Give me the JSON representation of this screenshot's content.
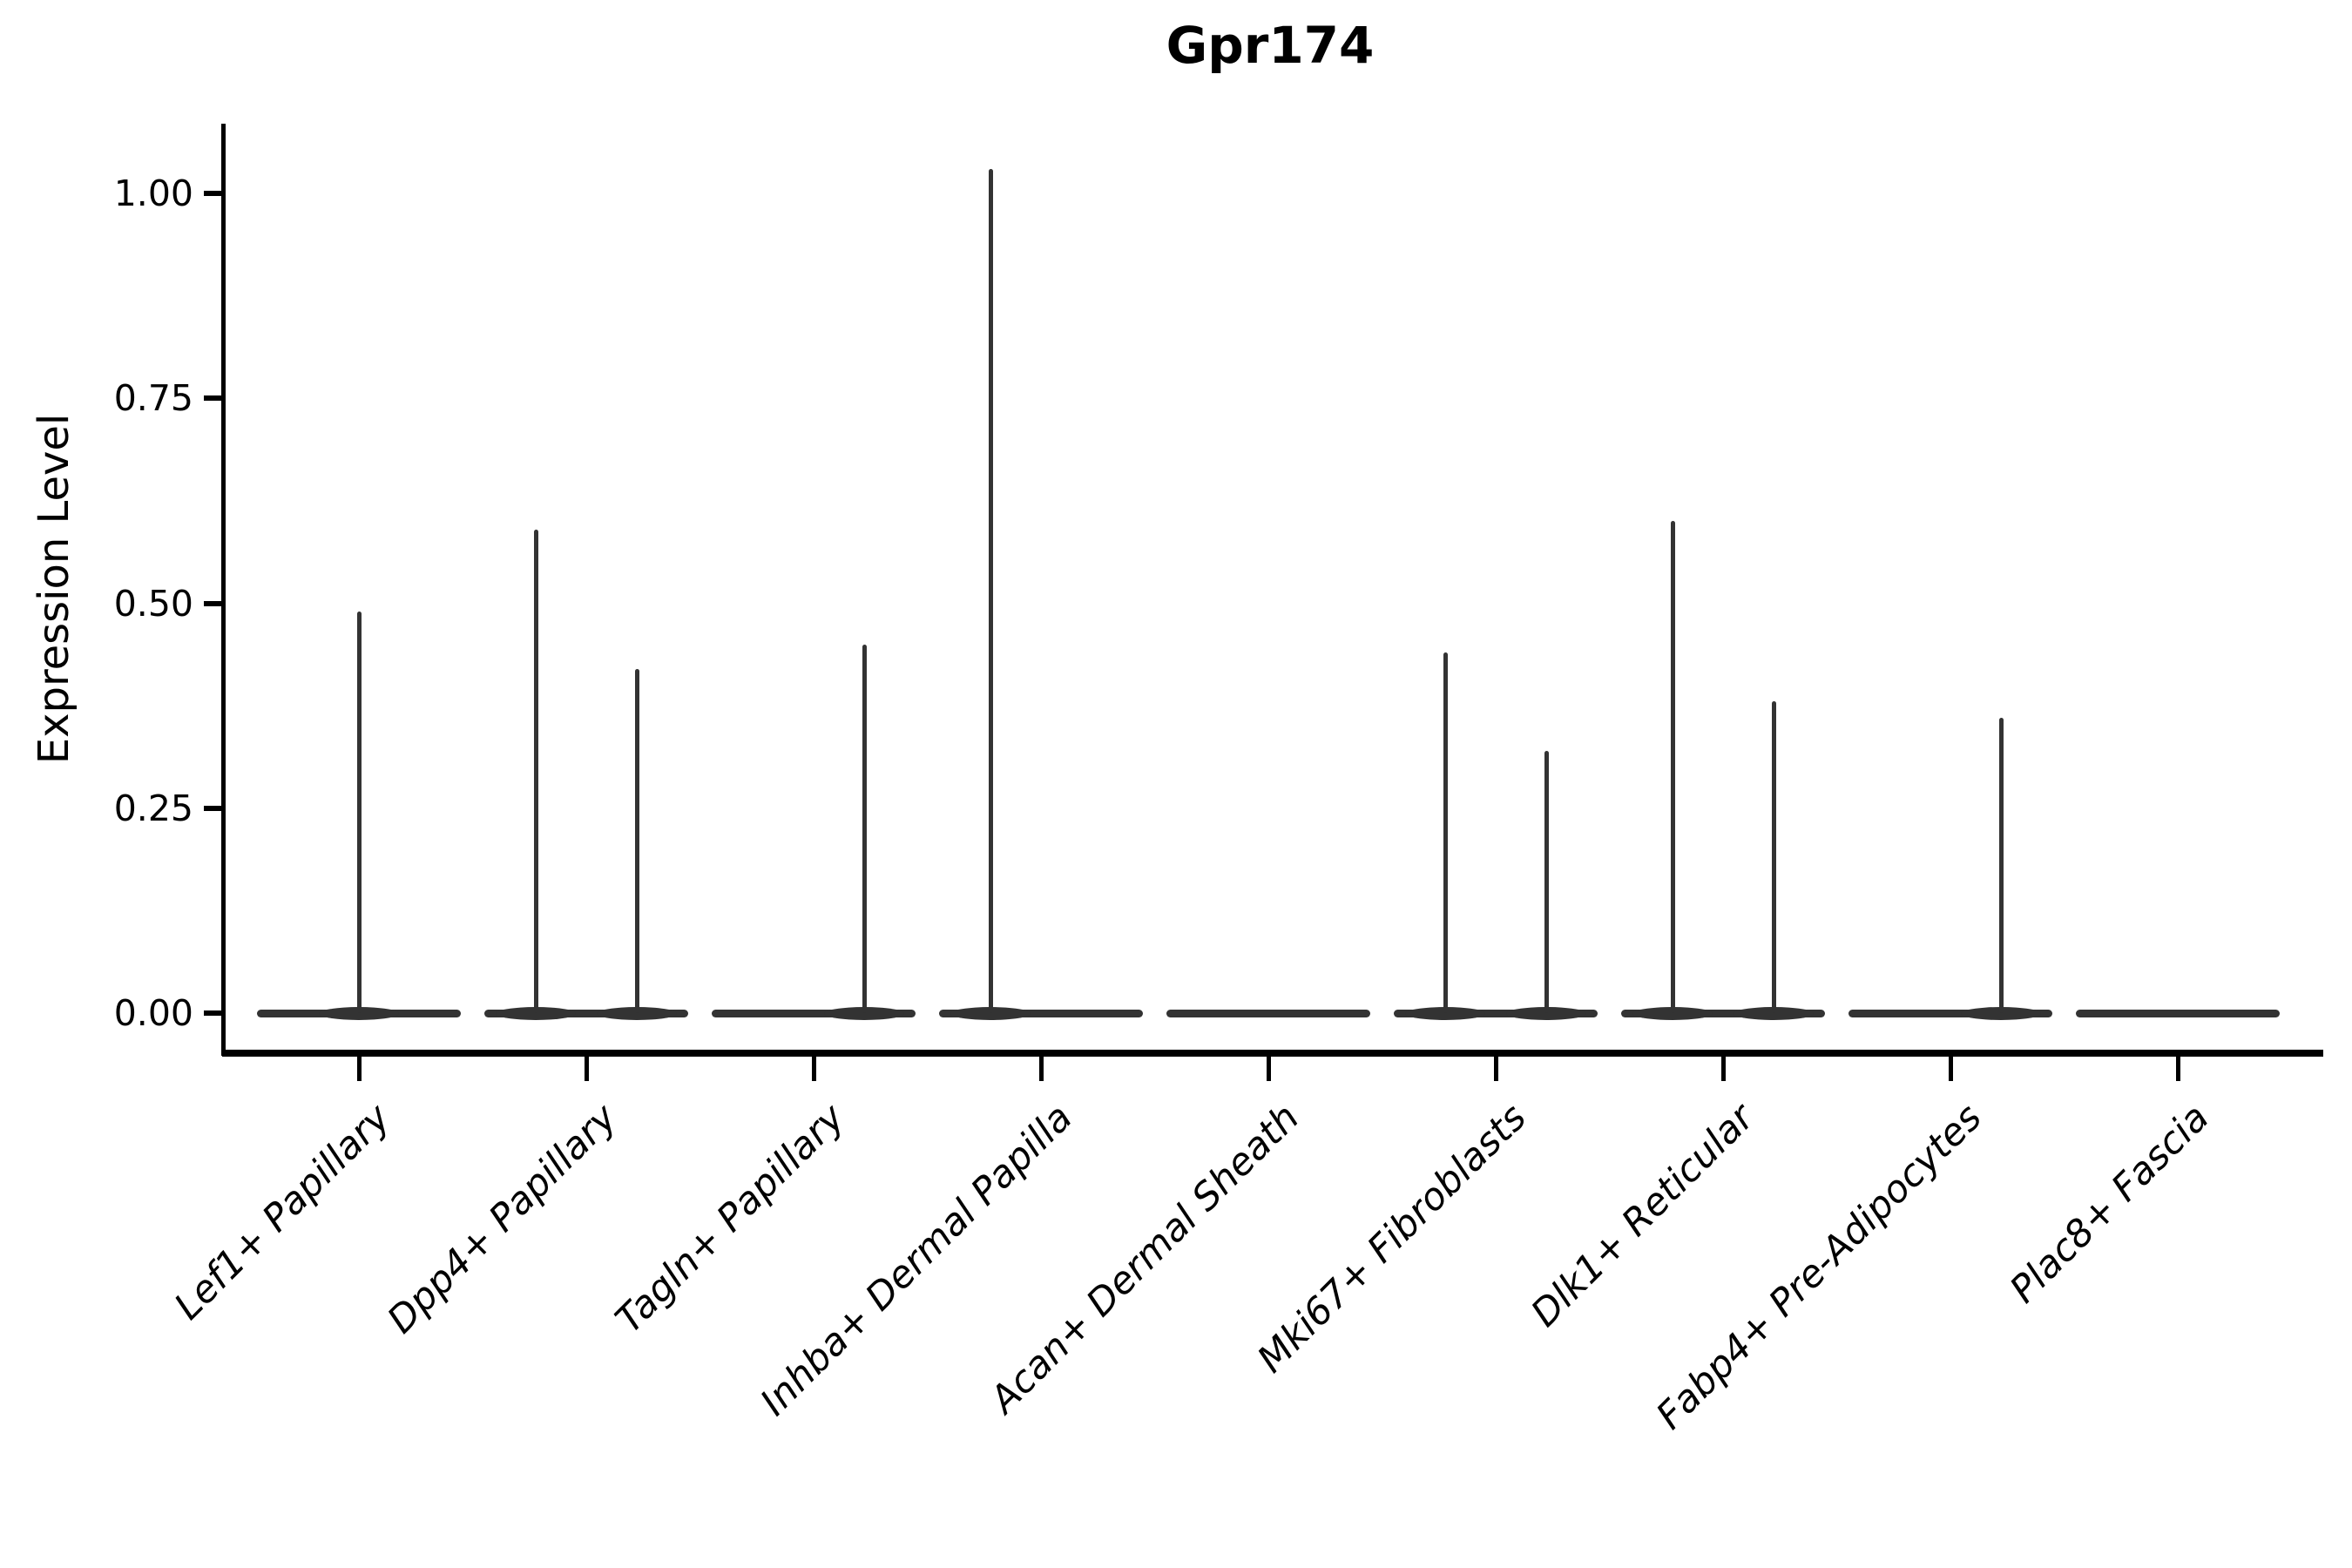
{
  "chart": {
    "title": "Gpr174",
    "ylabel": "Expression Level",
    "background_color": "#ffffff",
    "axis_color": "#000000",
    "violin_color": "#333333"
  },
  "chart_data": {
    "type": "violin",
    "title": "Gpr174",
    "xlabel": "",
    "ylabel": "Expression Level",
    "ylim": [
      0,
      1.09
    ],
    "grid": false,
    "legend": "none",
    "yticks": [
      {
        "label": "0.00",
        "value": 0.0
      },
      {
        "label": "0.25",
        "value": 0.25
      },
      {
        "label": "0.50",
        "value": 0.5
      },
      {
        "label": "0.75",
        "value": 0.75
      },
      {
        "label": "1.00",
        "value": 1.0
      }
    ],
    "categories": [
      "Lef1+ Papillary",
      "Dpp4+ Papillary",
      "Tagln+ Papillary",
      "Inhba+ Dermal Papilla",
      "Acan+ Dermal Sheath",
      "Mki67+ Fibroblasts",
      "Dlk1+ Reticular",
      "Fabp4+ Pre-Adipocytes",
      "Plac8+ Fascia"
    ],
    "violins": [
      {
        "category": "Lef1+ Papillary",
        "baseline_value": 0,
        "spikes": [
          {
            "position": "center",
            "peak": 0.49
          }
        ]
      },
      {
        "category": "Dpp4+ Papillary",
        "baseline_value": 0,
        "spikes": [
          {
            "position": "left",
            "peak": 0.59
          },
          {
            "position": "right",
            "peak": 0.42
          }
        ]
      },
      {
        "category": "Tagln+ Papillary",
        "baseline_value": 0,
        "spikes": [
          {
            "position": "right",
            "peak": 0.45
          }
        ]
      },
      {
        "category": "Inhba+ Dermal Papilla",
        "baseline_value": 0,
        "spikes": [
          {
            "position": "left",
            "peak": 1.03
          }
        ]
      },
      {
        "category": "Acan+ Dermal Sheath",
        "baseline_value": 0,
        "spikes": []
      },
      {
        "category": "Mki67+ Fibroblasts",
        "baseline_value": 0,
        "spikes": [
          {
            "position": "left",
            "peak": 0.44
          },
          {
            "position": "right",
            "peak": 0.32
          }
        ]
      },
      {
        "category": "Dlk1+ Reticular",
        "baseline_value": 0,
        "spikes": [
          {
            "position": "left",
            "peak": 0.6
          },
          {
            "position": "right",
            "peak": 0.38
          }
        ]
      },
      {
        "category": "Fabp4+ Pre-Adipocytes",
        "baseline_value": 0,
        "spikes": [
          {
            "position": "right",
            "peak": 0.36
          }
        ]
      },
      {
        "category": "Plac8+ Fascia",
        "baseline_value": 0,
        "spikes": []
      }
    ]
  }
}
